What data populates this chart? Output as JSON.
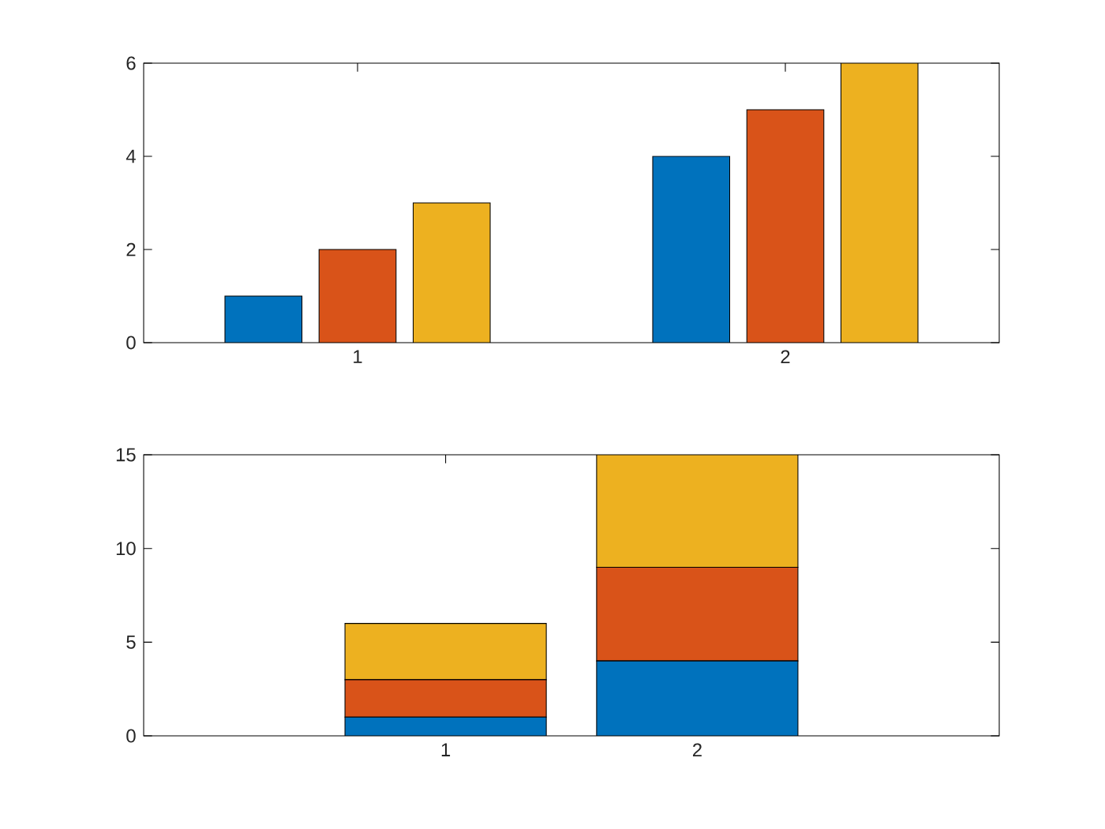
{
  "chart_data": [
    {
      "type": "bar",
      "categories": [
        "1",
        "2"
      ],
      "ylim": [
        0,
        6
      ],
      "yticks": [
        0,
        2,
        4,
        6
      ],
      "series": [
        {
          "color": "#0072bd",
          "values": [
            1,
            4
          ]
        },
        {
          "color": "#d95319",
          "values": [
            2,
            5
          ]
        },
        {
          "color": "#edb120",
          "values": [
            3,
            6
          ]
        }
      ]
    },
    {
      "type": "bar",
      "stacked": true,
      "categories": [
        "1",
        "2"
      ],
      "ylim": [
        0,
        15
      ],
      "yticks": [
        0,
        5,
        10,
        15
      ],
      "series": [
        {
          "color": "#0072bd",
          "values": [
            1,
            4
          ]
        },
        {
          "color": "#d95319",
          "values": [
            2,
            5
          ]
        },
        {
          "color": "#edb120",
          "values": [
            3,
            6
          ]
        }
      ]
    }
  ]
}
